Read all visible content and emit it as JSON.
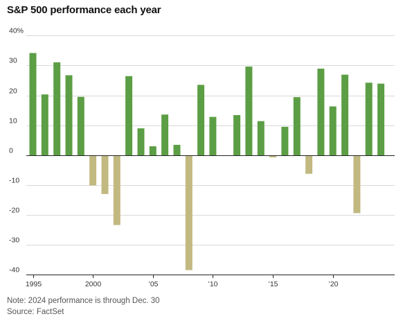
{
  "chart_data": {
    "type": "bar",
    "title": "S&P 500 performance each year",
    "xlabel": "",
    "ylabel": "",
    "ylim": [
      -40,
      40
    ],
    "y_ticks": [
      {
        "value": 40,
        "label": "40%"
      },
      {
        "value": 30,
        "label": "30"
      },
      {
        "value": 20,
        "label": "20"
      },
      {
        "value": 10,
        "label": "10"
      },
      {
        "value": 0,
        "label": "0"
      },
      {
        "value": -10,
        "label": "-10"
      },
      {
        "value": -20,
        "label": "-20"
      },
      {
        "value": -30,
        "label": "-30"
      },
      {
        "value": -40,
        "label": "-40"
      }
    ],
    "x_ticks": [
      {
        "year": 1995,
        "label": "1995"
      },
      {
        "year": 2000,
        "label": "2000"
      },
      {
        "year": 2005,
        "label": "’05"
      },
      {
        "year": 2010,
        "label": "’10"
      },
      {
        "year": 2015,
        "label": "’15"
      },
      {
        "year": 2020,
        "label": "’20"
      }
    ],
    "x": [
      1995,
      1996,
      1997,
      1998,
      1999,
      2000,
      2001,
      2002,
      2003,
      2004,
      2005,
      2006,
      2007,
      2008,
      2009,
      2010,
      2011,
      2012,
      2013,
      2014,
      2015,
      2016,
      2017,
      2018,
      2019,
      2020,
      2021,
      2022,
      2023,
      2024
    ],
    "values": [
      34.1,
      20.3,
      31.0,
      26.7,
      19.5,
      -10.1,
      -13.0,
      -23.4,
      26.4,
      9.0,
      3.0,
      13.6,
      3.5,
      -38.5,
      23.5,
      12.8,
      0.0,
      13.4,
      29.6,
      11.4,
      -0.7,
      9.5,
      19.4,
      -6.2,
      28.9,
      16.3,
      26.9,
      -19.4,
      24.2,
      23.9
    ],
    "grid": true,
    "legend": "none",
    "colors": {
      "positive": "#5c9e45",
      "negative": "#c2b981",
      "gridline": "#d9d9d9",
      "axis": "#222222"
    }
  },
  "notes": {
    "note": "Note: 2024 performance is through Dec. 30",
    "source": "Source: FactSet"
  }
}
